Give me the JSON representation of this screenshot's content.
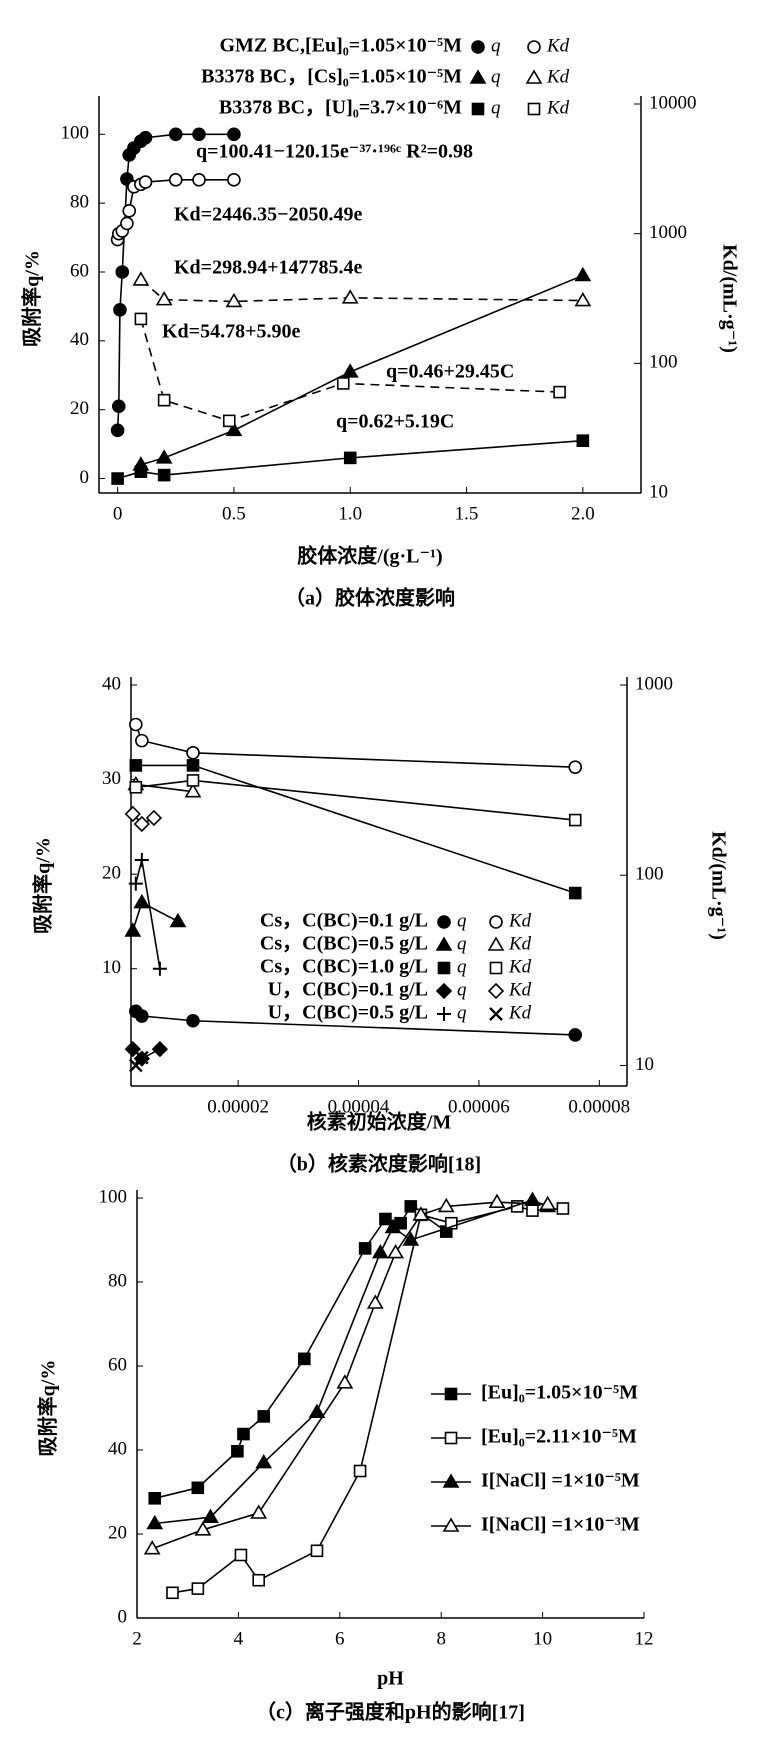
{
  "chart_data": [
    {
      "type": "line",
      "caption": "（a）胶体浓度影响",
      "x_label": "胶体浓度/(g·L⁻¹)",
      "y_label": "吸附率q/%",
      "y2_label": "Kd/(mL·g⁻¹)",
      "xlim": [
        -0.08,
        2.25
      ],
      "xticks": [
        0,
        0.5,
        {
          "value": 1,
          "label": "1.0"
        },
        1.5,
        {
          "value": 2,
          "label": "2.0"
        }
      ],
      "ylim": [
        -4.2,
        108.8
      ],
      "yticks": [
        0,
        20,
        40,
        60,
        80,
        100
      ],
      "y2lim": [
        10,
        10000
      ],
      "y2ticks": [
        10,
        100,
        1000,
        10000
      ],
      "y2_scale": "log",
      "color": "#000000",
      "annotations": [
        "q=100.41−120.15e⁻³⁷·¹⁹⁶ᶜ R²=0.98",
        "Kd=2446.35−2050.49e",
        "Kd=298.94+147785.4e",
        "Kd=54.78+5.90e",
        "q=0.46+29.45C",
        "q=0.62+5.19C"
      ],
      "groups": [
        {
          "label": "GMZ BC,[Eu]₀=1.05×10⁻⁵M",
          "series": [
            {
              "name": "q",
              "marker": "circle",
              "line": "solid",
              "x": [
                0,
                0.005,
                0.01,
                0.02,
                0.04,
                0.05,
                0.07,
                0.1,
                0.12,
                0.25,
                0.35,
                0.5
              ],
              "values": [
                14,
                21,
                49,
                60,
                87,
                94,
                96,
                98,
                99,
                100,
                100,
                100
              ]
            },
            {
              "name": "Kd",
              "marker": "circle-open",
              "line": "solid",
              "axis": "y2",
              "x": [
                0,
                0.005,
                0.02,
                0.04,
                0.05,
                0.07,
                0.1,
                0.12,
                0.25,
                0.35,
                0.5
              ],
              "values": [
                900,
                1000,
                1050,
                1200,
                1500,
                2300,
                2400,
                2500,
                2600,
                2600,
                2600
              ]
            }
          ]
        },
        {
          "label": "B3378 BC，[Cs]₀=1.05×10⁻⁵M",
          "series": [
            {
              "name": "q",
              "marker": "triangle",
              "line": "solid",
              "x": [
                0.1,
                0.2,
                0.5,
                1,
                2
              ],
              "values": [
                4,
                6,
                14,
                31,
                59
              ]
            },
            {
              "name": "Kd",
              "marker": "triangle-open",
              "line": "dashed",
              "axis": "y2",
              "x": [
                0.1,
                0.2,
                0.5,
                1,
                2
              ],
              "values": [
                440,
                310,
                300,
                320,
                305
              ]
            }
          ]
        },
        {
          "label": "B3378 BC，[U]₀=3.7×10⁻⁶M",
          "series": [
            {
              "name": "q",
              "marker": "square",
              "line": "solid",
              "x": [
                0,
                0.1,
                0.2,
                1,
                2
              ],
              "values": [
                0,
                2,
                1,
                6,
                11
              ]
            },
            {
              "name": "Kd",
              "marker": "square-open",
              "line": "dashed",
              "axis": "y2",
              "x": [
                0.1,
                0.2,
                0.48,
                0.97,
                1.9
              ],
              "values": [
                220,
                52,
                36,
                70,
                60
              ]
            }
          ]
        }
      ]
    },
    {
      "type": "line",
      "caption": "（b）核素浓度影响[18]",
      "x_label": "核素初始浓度/M",
      "y_label": "吸附率q/%",
      "y2_label": "Kd/(mL·g⁻¹)",
      "xlim": [
        2.2e-06,
        8.46e-05
      ],
      "xticks": [
        {
          "value": 2e-05,
          "label": "0.00002"
        },
        {
          "value": 4e-05,
          "label": "0.00004"
        },
        {
          "value": 6e-05,
          "label": "0.00006"
        },
        {
          "value": 8e-05,
          "label": "0.00008"
        }
      ],
      "ylim": [
        -2.4,
        40
      ],
      "yticks": [
        10,
        20,
        30,
        40
      ],
      "y2lim": [
        7.8,
        1000
      ],
      "y2ticks": [
        10,
        100,
        1000
      ],
      "y2_scale": "log",
      "color": "#000000",
      "groups": [
        {
          "label": "Cs，C(BC)=0.1 g/L",
          "series": [
            {
              "name": "q",
              "marker": "circle",
              "line": "solid",
              "x": [
                3e-06,
                4e-06,
                1.25e-05,
                7.6e-05
              ],
              "values": [
                5.5,
                5,
                4.5,
                3
              ]
            },
            {
              "name": "Kd",
              "marker": "circle-open",
              "line": "solid",
              "axis": "y2",
              "x": [
                3e-06,
                4e-06,
                1.25e-05,
                7.6e-05
              ],
              "values": [
                620,
                510,
                440,
                370
              ]
            }
          ]
        },
        {
          "label": "Cs，C(BC)=0.5 g/L",
          "series": [
            {
              "name": "q",
              "marker": "triangle",
              "line": "solid",
              "x": [
                2.5e-06,
                4e-06,
                1e-05
              ],
              "values": [
                14,
                17,
                15
              ]
            },
            {
              "name": "Kd",
              "marker": "triangle-open",
              "line": "solid",
              "axis": "y2",
              "x": [
                3e-06,
                1.25e-05
              ],
              "values": [
                300,
                275
              ]
            }
          ]
        },
        {
          "label": "Cs，C(BC)=1.0 g/L",
          "series": [
            {
              "name": "q",
              "marker": "square",
              "line": "solid",
              "x": [
                3e-06,
                1.25e-05,
                7.6e-05
              ],
              "values": [
                31.5,
                31.5,
                18
              ]
            },
            {
              "name": "Kd",
              "marker": "square-open",
              "line": "solid",
              "axis": "y2",
              "x": [
                3e-06,
                1.25e-05,
                7.6e-05
              ],
              "values": [
                290,
                315,
                195
              ]
            }
          ]
        },
        {
          "label": "U，C(BC)=0.1 g/L",
          "series": [
            {
              "name": "q",
              "marker": "diamond",
              "line": "solid",
              "x": [
                2.5e-06,
                4e-06,
                7e-06
              ],
              "values": [
                1.5,
                0.5,
                1.5
              ]
            },
            {
              "name": "Kd",
              "marker": "diamond-open",
              "line": "solid",
              "axis": "y2",
              "x": [
                2.5e-06,
                4e-06,
                6e-06
              ],
              "values": [
                210,
                186,
                200
              ]
            }
          ]
        },
        {
          "label": "U，C(BC)=0.5 g/L",
          "series": [
            {
              "name": "q",
              "marker": "plus",
              "line": "solid",
              "x": [
                3e-06,
                4e-06,
                7e-06
              ],
              "values": [
                19,
                21.5,
                10
              ]
            },
            {
              "name": "Kd",
              "marker": "x",
              "line": "solid",
              "axis": "y2",
              "x": [
                3e-06,
                4e-06
              ],
              "values": [
                10,
                11
              ]
            }
          ]
        }
      ]
    },
    {
      "type": "line",
      "caption": "（c）离子强度和pH的影响[17]",
      "x_label": "pH",
      "y_label": "吸附率q/%",
      "xlim": [
        2,
        12
      ],
      "xticks": [
        2,
        4,
        6,
        8,
        10,
        12
      ],
      "ylim": [
        0,
        100
      ],
      "yticks": [
        0,
        20,
        40,
        60,
        80,
        100
      ],
      "color": "#000000",
      "series": [
        {
          "name": "[Eu]₀=1.05×10⁻⁵M",
          "marker": "square",
          "line": "solid",
          "x": [
            2.35,
            3.2,
            3.98,
            4.1,
            4.5,
            5.3,
            6.5,
            6.9,
            7.2,
            7.4,
            8.1
          ],
          "values": [
            28.5,
            31,
            39.7,
            43.8,
            48,
            61.7,
            88,
            95,
            94,
            98,
            92
          ]
        },
        {
          "name": "[Eu]₀=2.11×10⁻⁵M",
          "marker": "square-open",
          "line": "solid",
          "x": [
            2.7,
            3.2,
            4.05,
            4.4,
            5.55,
            6.4,
            7.6,
            8.2,
            9.5,
            9.8,
            10.4
          ],
          "values": [
            6,
            7,
            15,
            9,
            16,
            35,
            96,
            94,
            98,
            97,
            97.5
          ]
        },
        {
          "name": "I[NaCl] =1×10⁻⁵M",
          "marker": "triangle",
          "line": "solid",
          "x": [
            2.35,
            3.45,
            4.5,
            5.55,
            6.8,
            7.05,
            7.4,
            9.8,
            10.1
          ],
          "values": [
            22.5,
            24,
            37,
            49,
            87,
            93,
            90,
            99.5,
            98
          ]
        },
        {
          "name": "I[NaCl] =1×10⁻³M",
          "marker": "triangle-open",
          "line": "solid",
          "x": [
            2.3,
            3.3,
            4.4,
            6.1,
            6.7,
            7.1,
            7.6,
            8.1,
            9.1,
            10.1
          ],
          "values": [
            16.5,
            21,
            25,
            56,
            75,
            87,
            96,
            98,
            99,
            98.5
          ]
        }
      ]
    }
  ]
}
